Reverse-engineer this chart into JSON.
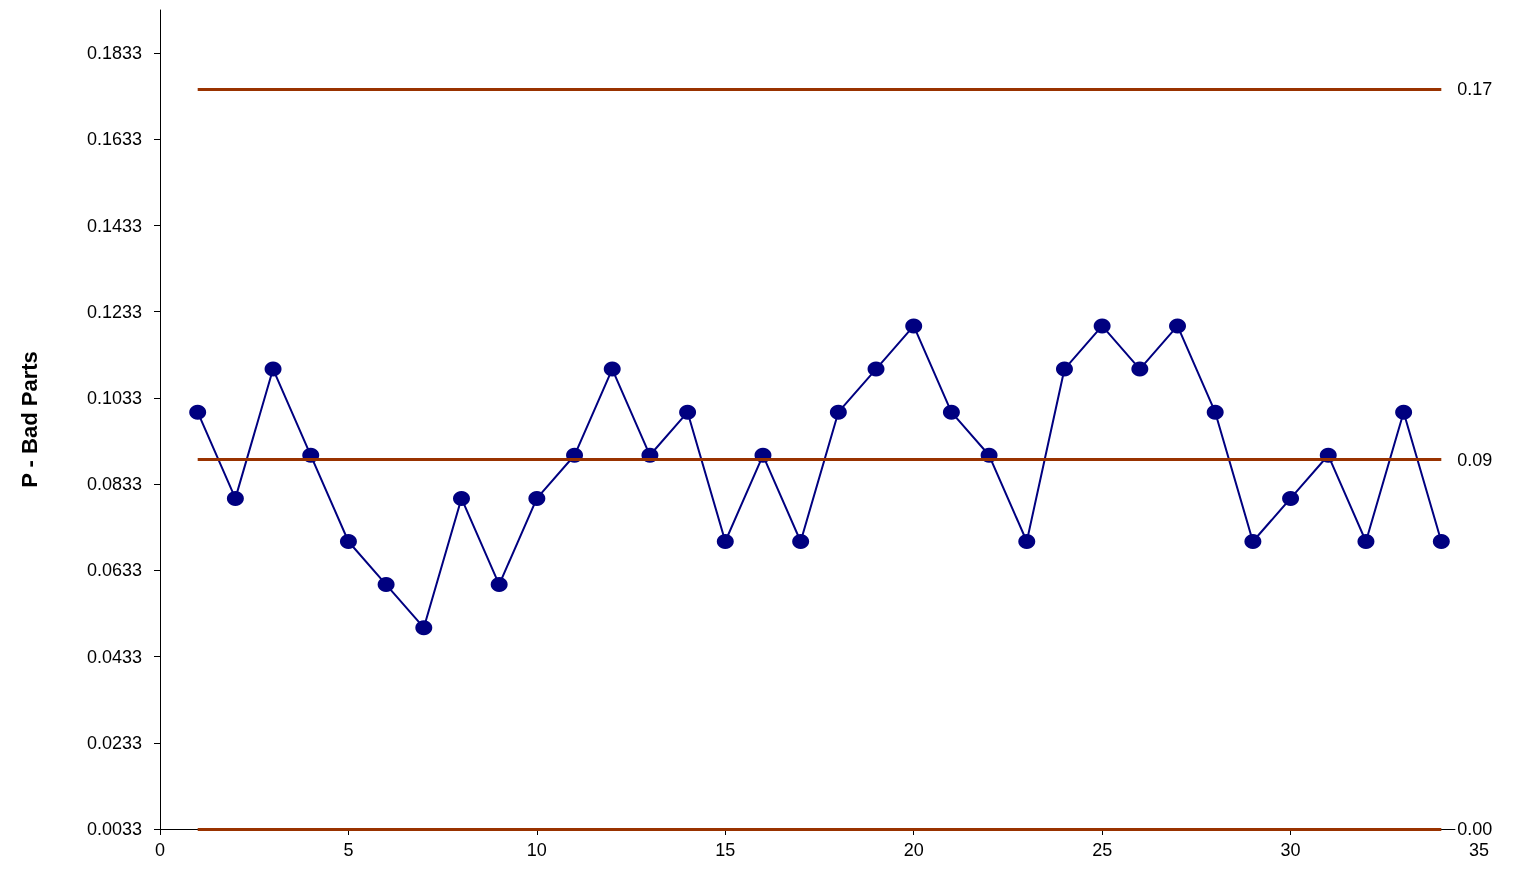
{
  "chart_data": {
    "type": "line",
    "ylabel": "P - Bad Parts",
    "x": [
      1,
      2,
      3,
      4,
      5,
      6,
      7,
      8,
      9,
      10,
      11,
      12,
      13,
      14,
      15,
      16,
      17,
      18,
      19,
      20,
      21,
      22,
      23,
      24,
      25,
      26,
      27,
      28,
      29,
      30,
      31,
      32,
      33,
      34
    ],
    "series": [
      {
        "color": "#000080",
        "values": [
          0.1,
          0.08,
          0.11,
          0.09,
          0.07,
          0.06,
          0.05,
          0.08,
          0.06,
          0.08,
          0.09,
          0.11,
          0.09,
          0.1,
          0.07,
          0.09,
          0.07,
          0.1,
          0.11,
          0.12,
          0.1,
          0.09,
          0.07,
          0.11,
          0.12,
          0.11,
          0.12,
          0.1,
          0.07,
          0.08,
          0.09,
          0.07,
          0.1,
          0.07
        ]
      }
    ],
    "xlim": [
      0,
      35
    ],
    "xticks": [
      0,
      5,
      10,
      15,
      20,
      25,
      30,
      35
    ],
    "ylim": [
      0.0033,
      0.1933
    ],
    "yticks": [
      0.0033,
      0.0233,
      0.0433,
      0.0633,
      0.0833,
      0.1033,
      0.1233,
      0.1433,
      0.1633,
      0.1833
    ],
    "ref_lines": [
      {
        "axis": "y",
        "value": 0.175,
        "label": "0.17",
        "color": "#993300"
      },
      {
        "axis": "y",
        "value": 0.089,
        "label": "0.09",
        "color": "#993300"
      },
      {
        "axis": "y",
        "value": 0.0033,
        "label": "0.00",
        "color": "#993300"
      }
    ],
    "grid": false,
    "marker": "circle",
    "line_style": "solid"
  }
}
